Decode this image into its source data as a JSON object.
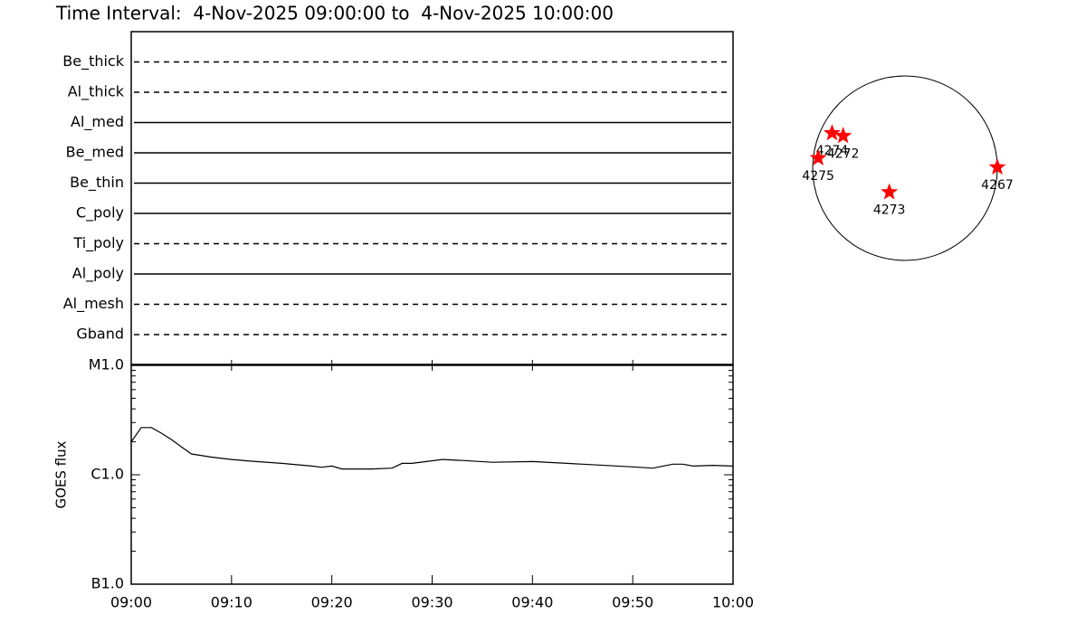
{
  "title": "Time Interval:  4-Nov-2025 09:00:00 to  4-Nov-2025 10:00:00",
  "chart_data": [
    {
      "type": "channels",
      "channels": [
        {
          "name": "Be_thick",
          "style": "dashed"
        },
        {
          "name": "Al_thick",
          "style": "dashed"
        },
        {
          "name": "Al_med",
          "style": "solid"
        },
        {
          "name": "Be_med",
          "style": "solid"
        },
        {
          "name": "Be_thin",
          "style": "solid"
        },
        {
          "name": "C_poly",
          "style": "solid"
        },
        {
          "name": "Ti_poly",
          "style": "dashed"
        },
        {
          "name": "Al_poly",
          "style": "solid"
        },
        {
          "name": "Al_mesh",
          "style": "dashed"
        },
        {
          "name": "Gband",
          "style": "dashed"
        }
      ]
    },
    {
      "type": "line",
      "ylabel": "GOES flux",
      "log_scale": true,
      "color": "#000000",
      "x": [
        "09:00",
        "09:01",
        "09:02",
        "09:03",
        "09:04",
        "09:05",
        "09:06",
        "09:08",
        "09:10",
        "09:12",
        "09:15",
        "09:18",
        "09:19",
        "09:20",
        "09:21",
        "09:24",
        "09:26",
        "09:27",
        "09:28",
        "09:31",
        "09:33",
        "09:36",
        "09:40",
        "09:45",
        "09:50",
        "09:52",
        "09:54",
        "09:55",
        "09:56",
        "09:58",
        "10:00"
      ],
      "values": [
        2e-06,
        2.7e-06,
        2.7e-06,
        2.4e-06,
        2.1e-06,
        1.8e-06,
        1.55e-06,
        1.45e-06,
        1.38e-06,
        1.33e-06,
        1.27e-06,
        1.2e-06,
        1.17e-06,
        1.2e-06,
        1.13e-06,
        1.13e-06,
        1.15e-06,
        1.27e-06,
        1.27e-06,
        1.38e-06,
        1.35e-06,
        1.3e-06,
        1.32e-06,
        1.25e-06,
        1.18e-06,
        1.15e-06,
        1.25e-06,
        1.25e-06,
        1.2e-06,
        1.22e-06,
        1.2e-06
      ],
      "xlim": [
        "09:00",
        "10:00"
      ],
      "xticks": [
        "09:00",
        "09:10",
        "09:20",
        "09:30",
        "09:40",
        "09:50",
        "10:00"
      ],
      "ylim": [
        1e-07,
        1e-05
      ],
      "yticks": [
        {
          "value": 1e-05,
          "label": "M1.0"
        },
        {
          "value": 1e-06,
          "label": "C1.0"
        },
        {
          "value": 1e-07,
          "label": "B1.0"
        }
      ],
      "yminorticks": [
        2e-07,
        3e-07,
        4e-07,
        5e-07,
        6e-07,
        7e-07,
        8e-07,
        9e-07,
        2e-06,
        3e-06,
        4e-06,
        5e-06,
        6e-06,
        7e-06,
        8e-06,
        9e-06
      ]
    },
    {
      "type": "disk",
      "color": "#ff0000",
      "regions": [
        {
          "label": "4274",
          "x": -0.79,
          "y": 0.38
        },
        {
          "label": "4272",
          "x": -0.67,
          "y": 0.35
        },
        {
          "label": "4275",
          "x": -0.94,
          "y": 0.11
        },
        {
          "label": "4273",
          "x": -0.17,
          "y": -0.26
        },
        {
          "label": "4267",
          "x": 1.0,
          "y": 0.01
        }
      ]
    }
  ]
}
